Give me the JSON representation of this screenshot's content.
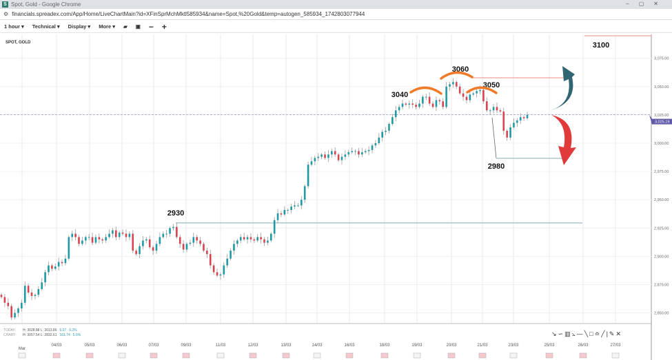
{
  "window": {
    "title": "Spot, Gold - Google Chrome",
    "url": "financials.spreadex.com/App/Home/LiveChartMain?id=XFinSprMchMktl585934&name=Spot,%20Gold&temp=autogen_585934_1742803077944"
  },
  "toolbar": {
    "interval": "1 hour ▾",
    "technical": "Technical ▾",
    "display": "Display ▾",
    "more": "More ▾"
  },
  "symbol": "SPOT, GOLD",
  "stats": {
    "today_label": "TODAY:",
    "today_h": "H: 3028.88",
    "today_l": "L: 3013.86",
    "today_chg": "6.07",
    "today_pct": "0.2%",
    "chart_label": "CHART:",
    "chart_h": "H: 3057.54",
    "chart_l": "L: 2832.61",
    "chart_chg": "161.74",
    "chart_pct": "5.6%"
  },
  "colors": {
    "up": "#1e9aa6",
    "down": "#d9434f",
    "price_tag": "#5f5aa8",
    "annotation": "#f07a28",
    "level_red": "#f2a0a0",
    "level_teal": "#9fbcc4"
  },
  "chart_data": {
    "type": "candlestick",
    "interval": "1 hour",
    "ylim": [
      2840,
      3100
    ],
    "yticks": [
      "2,850.00",
      "2,875.00",
      "2,900.00",
      "2,925.00",
      "2,950.00",
      "2,975.00",
      "3,000.00",
      "3,025.00",
      "3,050.00",
      "3,075.00"
    ],
    "ytick_values": [
      2850,
      2875,
      2900,
      2925,
      2950,
      2975,
      3000,
      3025,
      3050,
      3075
    ],
    "xticks": [
      "Mar",
      "04/03",
      "05/03",
      "06/03",
      "07/03",
      "09/03",
      "11/03",
      "12/03",
      "13/03",
      "14/03",
      "16/03",
      "18/03",
      "19/03",
      "20/03",
      "21/03",
      "23/03",
      "25/03",
      "26/03",
      "27/03"
    ],
    "last_price": "3,025.19",
    "closes": [
      2864,
      2859,
      2856,
      2846,
      2850,
      2854,
      2859,
      2874,
      2868,
      2865,
      2866,
      2871,
      2877,
      2886,
      2892,
      2889,
      2891,
      2895,
      2894,
      2898,
      2917,
      2920,
      2917,
      2911,
      2914,
      2917,
      2917,
      2912,
      2917,
      2915,
      2914,
      2917,
      2920,
      2923,
      2917,
      2921,
      2920,
      2917,
      2920,
      2905,
      2902,
      2909,
      2914,
      2915,
      2908,
      2905,
      2911,
      2917,
      2920,
      2920,
      2925,
      2926,
      2917,
      2911,
      2906,
      2911,
      2912,
      2917,
      2914,
      2911,
      2905,
      2902,
      2892,
      2886,
      2883,
      2884,
      2892,
      2898,
      2905,
      2911,
      2914,
      2917,
      2915,
      2917,
      2915,
      2914,
      2917,
      2915,
      2912,
      2914,
      2920,
      2932,
      2938,
      2937,
      2941,
      2941,
      2944,
      2945,
      2945,
      2950,
      2962,
      2981,
      2984,
      2987,
      2988,
      2990,
      2987,
      2990,
      2993,
      2990,
      2985,
      2988,
      2990,
      2992,
      2993,
      2993,
      2990,
      2992,
      2993,
      2994,
      2998,
      3000,
      3005,
      3010,
      3011,
      3017,
      3023,
      3029,
      3032,
      3035,
      3034,
      3035,
      3034,
      3032,
      3035,
      3041,
      3041,
      3035,
      3032,
      3038,
      3037,
      3032,
      3050,
      3052,
      3054,
      3050,
      3044,
      3041,
      3038,
      3043,
      3044,
      3046,
      3047,
      3037,
      3029,
      3029,
      3032,
      3029,
      3028,
      3011,
      3005,
      3014,
      3018,
      3020,
      3023,
      3022,
      3025
    ],
    "annotations": [
      "2930",
      "3040",
      "3060",
      "3050",
      "2980",
      "3100"
    ],
    "levels": [
      2930,
      3060,
      2980,
      3100
    ],
    "grid": true
  }
}
